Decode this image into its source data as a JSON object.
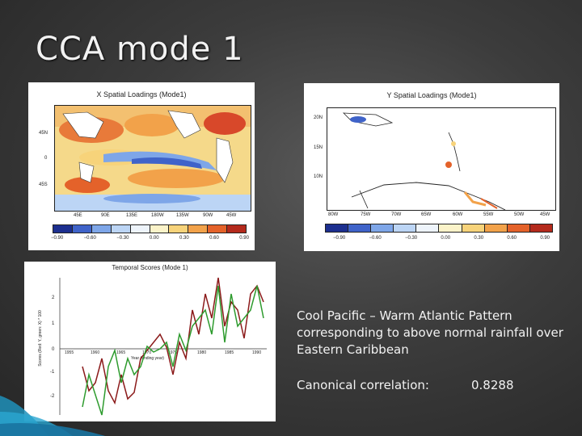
{
  "slide": {
    "title": "CCA mode 1",
    "description": "Cool Pacific – Warm Atlantic Pattern corresponding to above normal rainfall over Eastern Caribbean",
    "correlation_label": "Canonical correlation:",
    "correlation_value": "0.8288"
  },
  "x_panel": {
    "title": "X Spatial Loadings (Mode1)",
    "lat_labels": [
      "45N",
      "0",
      "45S"
    ],
    "lon_labels": [
      "45E",
      "90E",
      "135E",
      "180W",
      "135W",
      "90W",
      "45W"
    ],
    "colorbar_labels": [
      "−0.90",
      "−0.60",
      "−0.30",
      "0.00",
      "0.30",
      "0.60",
      "0.90"
    ]
  },
  "y_panel": {
    "title": "Y Spatial Loadings (Mode1)",
    "lat_labels": [
      "20N",
      "15N",
      "10N"
    ],
    "lon_labels": [
      "80W",
      "75W",
      "70W",
      "65W",
      "60W",
      "55W",
      "50W",
      "45W"
    ],
    "colorbar_labels": [
      "−0.90",
      "−0.60",
      "−0.30",
      "0.00",
      "0.30",
      "0.60",
      "0.90"
    ]
  },
  "t_panel": {
    "title": "Temporal Scores (Mode 1)",
    "ylabel": "Scores (Red: Y, green: X) * 100",
    "xlabel": "Year (ending year)",
    "y_ticks": [
      "2",
      "1",
      "0",
      "-1",
      "-2"
    ],
    "x_ticks": [
      "1955",
      "1960",
      "1965",
      "1970",
      "1975",
      "1980",
      "1985",
      "1990"
    ]
  },
  "colors": {
    "colorbar": [
      "#1c2f8f",
      "#3f63c9",
      "#7ea6e8",
      "#bcd5f5",
      "#eef4fb",
      "#fbf3c9",
      "#f7d37a",
      "#f2a24a",
      "#e4622a",
      "#b42a1c"
    ],
    "series_x": "#2e9b2e",
    "series_y": "#8b1a1a"
  }
}
